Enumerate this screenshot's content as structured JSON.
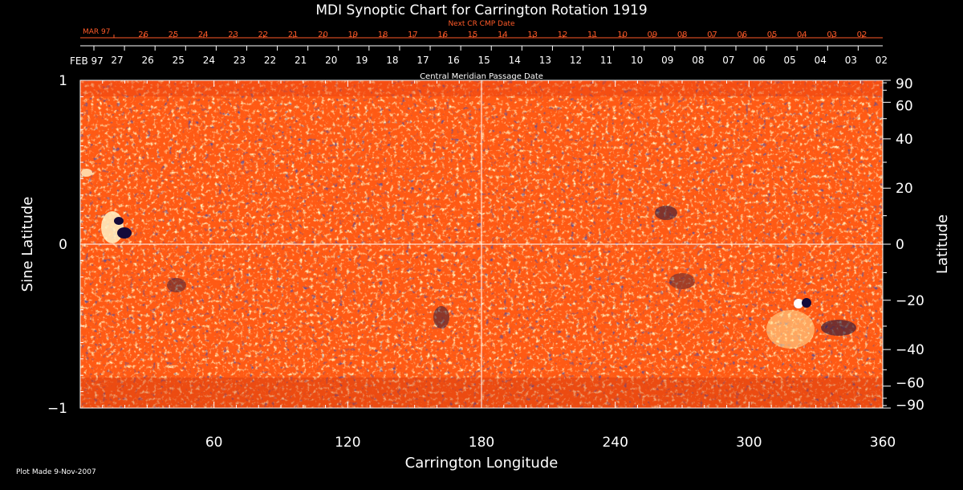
{
  "chart_data": {
    "type": "heatmap",
    "title": "MDI Synoptic Chart for Carrington Rotation 1919",
    "xlabel": "Carrington Longitude",
    "ylabel_left": "Sine Latitude",
    "ylabel_right": "Latitude",
    "xlim": [
      0,
      360
    ],
    "ylim": [
      -1,
      1
    ],
    "x_ticks": [
      60,
      120,
      180,
      240,
      300,
      360
    ],
    "y_ticks_left": [
      {
        "value": 1,
        "label": "1"
      },
      {
        "value": 0,
        "label": "0"
      },
      {
        "value": -1,
        "label": "−1"
      }
    ],
    "y_ticks_right": [
      {
        "lat": 90,
        "label": "90"
      },
      {
        "lat": 60,
        "label": "60"
      },
      {
        "lat": 40,
        "label": "40"
      },
      {
        "lat": 20,
        "label": "20"
      },
      {
        "lat": 0,
        "label": "0"
      },
      {
        "lat": -20,
        "label": "−20"
      },
      {
        "lat": -40,
        "label": "−40"
      },
      {
        "lat": -60,
        "label": "−60"
      },
      {
        "lat": -90,
        "label": "−90"
      }
    ],
    "cmp_axis_label": "Central Meridian Passage Date",
    "cmp_month_label": "FEB 97",
    "cmp_day_labels": [
      "27",
      "26",
      "25",
      "24",
      "23",
      "22",
      "21",
      "20",
      "19",
      "18",
      "17",
      "16",
      "15",
      "14",
      "13",
      "12",
      "11",
      "10",
      "09",
      "08",
      "07",
      "06",
      "05",
      "04",
      "03",
      "02"
    ],
    "next_cmp_axis_label": "Next CR CMP Date",
    "next_cmp_month_label": "MAR 97",
    "next_cmp_day_labels": [
      "26",
      "25",
      "24",
      "23",
      "22",
      "21",
      "20",
      "19",
      "18",
      "17",
      "16",
      "15",
      "14",
      "13",
      "12",
      "11",
      "10",
      "09",
      "08",
      "07",
      "06",
      "05",
      "04",
      "03",
      "02"
    ],
    "colors": {
      "background": "#000000",
      "map_base": "#ff5a14",
      "positive_field": "#ffe69c",
      "negative_field": "#1a1440",
      "axes": "#ffffff",
      "next_cmp_text": "#ff5a28"
    },
    "footer_note": "Plot Made  9-Nov-2007"
  }
}
